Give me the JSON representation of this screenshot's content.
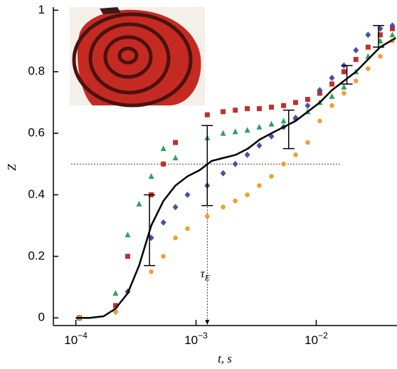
{
  "chart_data": {
    "type": "scatter",
    "xlabel": "t, s",
    "ylabel": "Z",
    "xlog": true,
    "xlim": [
      6.5e-05,
      0.047
    ],
    "ylim": [
      -0.025,
      1.01
    ],
    "xticks": [
      {
        "value": 0.0001,
        "label": "10−4"
      },
      {
        "value": 0.001,
        "label": "10−3"
      },
      {
        "value": 0.01,
        "label": "10−2"
      }
    ],
    "yticks": [
      0,
      0.2,
      0.4,
      0.6,
      0.8,
      1
    ],
    "series": [
      {
        "color": "#c0302a",
        "marker": "square",
        "x": [
          0.000107,
          0.000214,
          0.00027,
          0.000424,
          0.000535,
          0.000674,
          0.00124,
          0.00168,
          0.00212,
          0.00267,
          0.00336,
          0.00424,
          0.00535,
          0.00674,
          0.00849,
          0.0107,
          0.0135,
          0.017,
          0.0214,
          0.027,
          0.0341,
          0.043
        ],
        "values": [
          0,
          0.04,
          0.2,
          0.4,
          0.5,
          0.57,
          0.66,
          0.67,
          0.675,
          0.68,
          0.68,
          0.685,
          0.69,
          0.7,
          0.71,
          0.73,
          0.76,
          0.8,
          0.84,
          0.88,
          0.92,
          0.94
        ]
      },
      {
        "color": "#2ea35a",
        "marker": "triangle",
        "x": [
          0.000107,
          0.000214,
          0.00027,
          0.000336,
          0.000424,
          0.000535,
          0.000674,
          0.00124,
          0.00168,
          0.00212,
          0.00267,
          0.00336,
          0.00424,
          0.00535,
          0.00674,
          0.00849,
          0.0107,
          0.0135,
          0.017,
          0.0214,
          0.027,
          0.0341,
          0.043
        ],
        "values": [
          0,
          0.08,
          0.27,
          0.37,
          0.46,
          0.55,
          0.52,
          0.585,
          0.6,
          0.605,
          0.61,
          0.62,
          0.63,
          0.64,
          0.65,
          0.67,
          0.7,
          0.72,
          0.75,
          0.8,
          0.85,
          0.9,
          0.92
        ]
      },
      {
        "color": "#4a4fa8",
        "marker": "diamond",
        "x": [
          0.000107,
          0.000214,
          0.00027,
          0.000424,
          0.000535,
          0.000674,
          0.000849,
          0.00124,
          0.00168,
          0.00212,
          0.00267,
          0.00336,
          0.00424,
          0.00535,
          0.00674,
          0.00849,
          0.0107,
          0.0135,
          0.017,
          0.0214,
          0.027,
          0.0341,
          0.043
        ],
        "values": [
          0,
          0.02,
          0.085,
          0.26,
          0.31,
          0.36,
          0.4,
          0.43,
          0.47,
          0.5,
          0.53,
          0.56,
          0.59,
          0.62,
          0.65,
          0.69,
          0.74,
          0.78,
          0.82,
          0.87,
          0.92,
          0.94,
          0.95
        ]
      },
      {
        "color": "#f0a030",
        "marker": "circle",
        "x": [
          0.000107,
          0.000214,
          0.000424,
          0.000535,
          0.000674,
          0.000849,
          0.00124,
          0.00168,
          0.00212,
          0.00267,
          0.00336,
          0.00424,
          0.00535,
          0.00674,
          0.00849,
          0.0107,
          0.0135,
          0.017,
          0.0214,
          0.027,
          0.0341,
          0.043
        ],
        "values": [
          0,
          0.02,
          0.15,
          0.2,
          0.26,
          0.29,
          0.33,
          0.36,
          0.38,
          0.4,
          0.43,
          0.46,
          0.5,
          0.53,
          0.57,
          0.64,
          0.69,
          0.73,
          0.77,
          0.81,
          0.85,
          0.9
        ]
      },
      {
        "color": "#000000",
        "marker": "line",
        "x": [
          0.0001,
          0.00013,
          0.00017,
          0.000214,
          0.00027,
          0.000336,
          0.000424,
          0.000535,
          0.000674,
          0.000849,
          0.00107,
          0.00135,
          0.0017,
          0.00214,
          0.0027,
          0.0034,
          0.00424,
          0.00535,
          0.00674,
          0.00849,
          0.0107,
          0.0135,
          0.017,
          0.0214,
          0.027,
          0.034,
          0.046
        ],
        "values": [
          0,
          0,
          0.005,
          0.03,
          0.08,
          0.17,
          0.3,
          0.38,
          0.43,
          0.46,
          0.48,
          0.51,
          0.52,
          0.53,
          0.55,
          0.58,
          0.6,
          0.62,
          0.64,
          0.67,
          0.7,
          0.74,
          0.77,
          0.8,
          0.84,
          0.88,
          0.91
        ]
      }
    ],
    "error_bars": {
      "x": [
        0.00041,
        0.00124,
        0.0059,
        0.018,
        0.033
      ],
      "values": [
        0.285,
        0.495,
        0.6125,
        0.79,
        0.915
      ],
      "errors": [
        0.115,
        0.13,
        0.0625,
        0.03,
        0.035
      ]
    },
    "reference_line": {
      "y": 0.5
    },
    "annotation": {
      "text": "τE",
      "x": 0.00124,
      "y": 0.5
    }
  }
}
